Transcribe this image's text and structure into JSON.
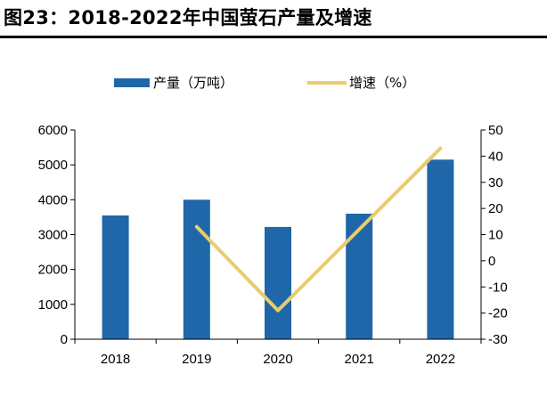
{
  "figure_title": "图23：2018-2022年中国萤石产量及增速",
  "colors": {
    "bar": "#1F67A8",
    "line": "#E8CC6E",
    "axis": "#000000"
  },
  "chart_data": {
    "type": "bar",
    "categories": [
      "2018",
      "2019",
      "2020",
      "2021",
      "2022"
    ],
    "series": [
      {
        "name": "产量（万吨）",
        "type": "bar",
        "axis": "left",
        "values": [
          3550,
          4000,
          3220,
          3600,
          5150
        ]
      },
      {
        "name": "增速（%）",
        "type": "line",
        "axis": "right",
        "values": [
          null,
          13,
          -19,
          12,
          43
        ]
      }
    ],
    "ylim_left": [
      0,
      6000
    ],
    "yticks_left": [
      "6000",
      "5000",
      "4000",
      "3000",
      "2000",
      "1000",
      "0"
    ],
    "ylim_right": [
      -30,
      50
    ],
    "yticks_right": [
      "50",
      "40",
      "30",
      "20",
      "10",
      "0",
      "-10",
      "-20",
      "-30"
    ],
    "grid": false,
    "legend_position": "top-center"
  }
}
